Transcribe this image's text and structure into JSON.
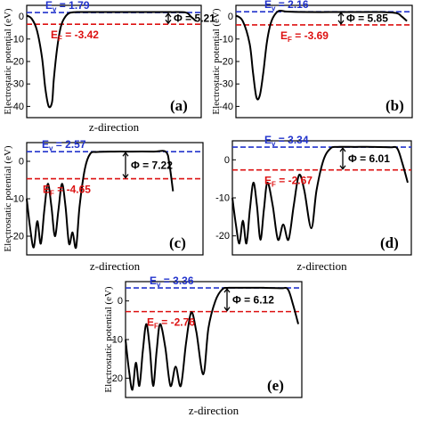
{
  "chart_data": [
    {
      "type": "line",
      "panel_label": "(a)",
      "xlabel": "z-direction",
      "ylabel": "Electrostatic potential (eV)",
      "ylim": [
        -45,
        5
      ],
      "yticks": [
        0,
        -10,
        -20,
        -30,
        -40
      ],
      "x": [
        0,
        0.03,
        0.06,
        0.09,
        0.11,
        0.13,
        0.15,
        0.16,
        0.18,
        0.2,
        0.22,
        0.25,
        0.3,
        0.4,
        0.55,
        0.7,
        0.85,
        0.94,
        0.97,
        1.0
      ],
      "values": [
        0.5,
        -1,
        -6,
        -18,
        -32,
        -40,
        -38,
        -28,
        -14,
        -5,
        -1,
        1.5,
        2,
        2,
        2,
        2,
        2,
        1.8,
        0,
        -2
      ],
      "vacuum_level": {
        "label": "E",
        "subscript": "v",
        "text": " = 1.79",
        "value": 1.79
      },
      "fermi_level": {
        "label": "E",
        "subscript": "F",
        "text": " = -3.42",
        "value": -3.42
      },
      "work_function": {
        "text": "Φ = 5.21",
        "value": 5.21
      },
      "colors": {
        "vacuum": "#2233cc",
        "fermi": "#dd1111",
        "curve": "#000000"
      }
    },
    {
      "type": "line",
      "panel_label": "(b)",
      "xlabel": "",
      "ylabel": "Electrostatic potential (eV)",
      "ylim": [
        -45,
        5
      ],
      "yticks": [
        0,
        -10,
        -20,
        -30,
        -40
      ],
      "x": [
        0,
        0.04,
        0.08,
        0.1,
        0.12,
        0.14,
        0.16,
        0.18,
        0.2,
        0.22,
        0.25,
        0.3,
        0.4,
        0.55,
        0.7,
        0.85,
        0.94,
        0.97,
        1.0
      ],
      "values": [
        0.5,
        -2,
        -12,
        -25,
        -36,
        -35,
        -25,
        -12,
        -4,
        0,
        2.5,
        2.2,
        2,
        2,
        2,
        2,
        1.5,
        0,
        -2
      ],
      "vacuum_level": {
        "label": "E",
        "subscript": "v",
        "text": " = 2.16",
        "value": 2.16
      },
      "fermi_level": {
        "label": "E",
        "subscript": "F",
        "text": " = -3.69",
        "value": -3.69
      },
      "work_function": {
        "text": "Φ = 5.85",
        "value": 5.85
      },
      "colors": {
        "vacuum": "#2233cc",
        "fermi": "#dd1111",
        "curve": "#000000"
      }
    },
    {
      "type": "line",
      "panel_label": "(c)",
      "xlabel": "z-direction",
      "ylabel": "Electrostatic potential (eV)",
      "ylim": [
        -25,
        5
      ],
      "yticks": [
        0,
        -10,
        -20
      ],
      "x": [
        0,
        0.02,
        0.04,
        0.06,
        0.08,
        0.1,
        0.12,
        0.14,
        0.16,
        0.18,
        0.2,
        0.22,
        0.24,
        0.26,
        0.28,
        0.3,
        0.33,
        0.36,
        0.4,
        0.5,
        0.6,
        0.72,
        0.79,
        0.81,
        0.83
      ],
      "values": [
        -10,
        -18,
        -23,
        -16,
        -22,
        -13,
        -6,
        -12,
        -20,
        -13,
        -6,
        -12,
        -22,
        -19,
        -23,
        -12,
        -2,
        2,
        2.5,
        2.6,
        2.6,
        2.6,
        2.5,
        -1,
        -8
      ],
      "vacuum_level": {
        "label": "E",
        "subscript": "v",
        "text": " = 2.57",
        "value": 2.57
      },
      "fermi_level": {
        "label": "E",
        "subscript": "F",
        "text": " = -4.65",
        "value": -4.65
      },
      "work_function": {
        "text": "Φ = 7.22",
        "value": 7.22
      },
      "colors": {
        "vacuum": "#2233cc",
        "fermi": "#dd1111",
        "curve": "#000000"
      }
    },
    {
      "type": "line",
      "panel_label": "(d)",
      "xlabel": "z-direction",
      "ylabel": "",
      "ylim": [
        -25,
        5
      ],
      "yticks": [
        0,
        -10,
        -20
      ],
      "x": [
        0,
        0.02,
        0.04,
        0.06,
        0.08,
        0.1,
        0.12,
        0.14,
        0.16,
        0.18,
        0.2,
        0.23,
        0.26,
        0.29,
        0.32,
        0.35,
        0.38,
        0.41,
        0.45,
        0.48,
        0.52,
        0.56,
        0.6,
        0.7,
        0.8,
        0.9,
        0.94,
        0.97,
        1.0
      ],
      "values": [
        -10,
        -17,
        -22,
        -16,
        -22,
        -13,
        -6,
        -12,
        -21,
        -13,
        -6,
        -12,
        -21,
        -17,
        -21,
        -12,
        -4,
        -8,
        -18,
        -8,
        0,
        3,
        3.4,
        3.4,
        3.4,
        3.3,
        3,
        -1,
        -6
      ],
      "vacuum_level": {
        "label": "E",
        "subscript": "v",
        "text": " = 3.34",
        "value": 3.34
      },
      "fermi_level": {
        "label": "E",
        "subscript": "F",
        "text": " = -2.67",
        "value": -2.67
      },
      "work_function": {
        "text": "Φ = 6.01",
        "value": 6.01
      },
      "colors": {
        "vacuum": "#2233cc",
        "fermi": "#dd1111",
        "curve": "#000000"
      }
    },
    {
      "type": "line",
      "panel_label": "(e)",
      "xlabel": "z-direction",
      "ylabel": "Electrostatic potential (eV)",
      "ylim": [
        -25,
        5
      ],
      "yticks": [
        0,
        -10,
        -20
      ],
      "x": [
        0,
        0.02,
        0.04,
        0.06,
        0.08,
        0.1,
        0.12,
        0.14,
        0.16,
        0.18,
        0.2,
        0.23,
        0.26,
        0.29,
        0.32,
        0.35,
        0.38,
        0.41,
        0.45,
        0.48,
        0.52,
        0.56,
        0.6,
        0.7,
        0.8,
        0.9,
        0.94,
        0.97,
        1.0
      ],
      "values": [
        -10,
        -18,
        -23,
        -16,
        -22,
        -13,
        -6,
        -12,
        -22,
        -13,
        -6,
        -12,
        -22,
        -17,
        -22,
        -11,
        -3,
        -8,
        -19,
        -7,
        0,
        3,
        3.4,
        3.4,
        3.4,
        3.3,
        3,
        -1,
        -6
      ],
      "vacuum_level": {
        "label": "E",
        "subscript": "v",
        "text": " = 3.36",
        "value": 3.36
      },
      "fermi_level": {
        "label": "E",
        "subscript": "F",
        "text": " = -2.76",
        "value": -2.76
      },
      "work_function": {
        "text": "Φ = 6.12",
        "value": 6.12
      },
      "colors": {
        "vacuum": "#2233cc",
        "fermi": "#dd1111",
        "curve": "#000000"
      }
    }
  ]
}
